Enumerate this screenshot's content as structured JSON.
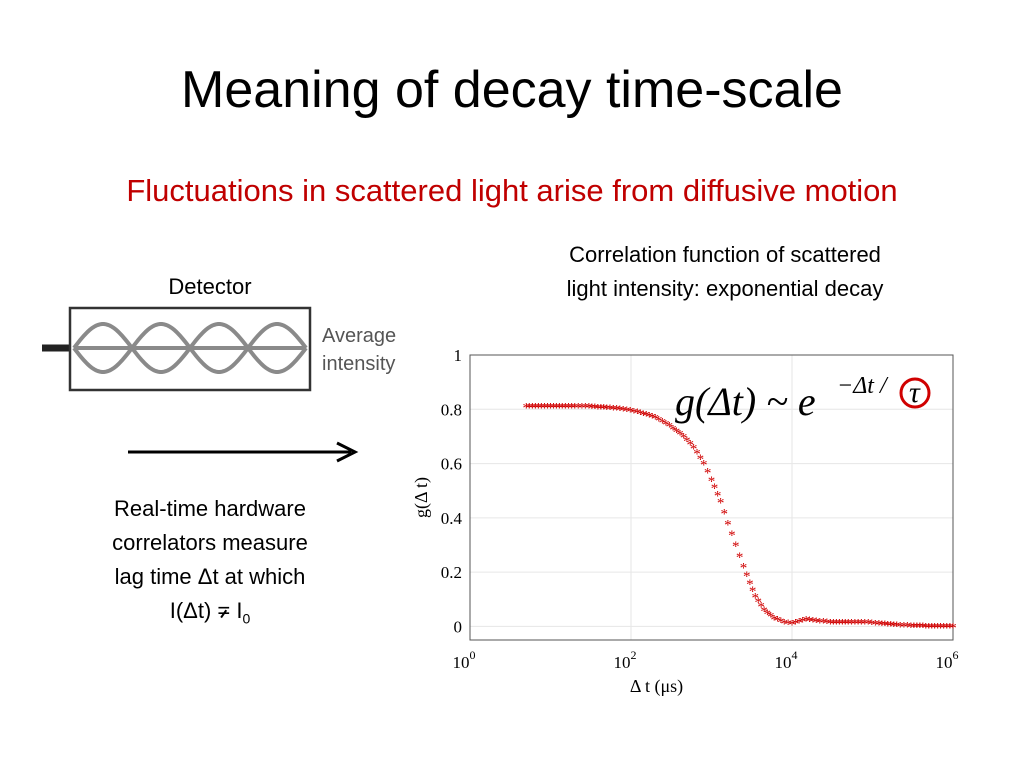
{
  "slide": {
    "title": "Meaning of decay time-scale",
    "subtitle": "Fluctuations in scattered light arise from diffusive motion",
    "detector_label": "Detector",
    "detector_legend": [
      "Average",
      "intensity"
    ],
    "correlation_caption": [
      "Correlation function of scattered",
      "light intensity: exponential decay"
    ],
    "realtime_text": {
      "line1": "Real-time hardware",
      "line2": "correlators measure",
      "line3": "lag time Δt at which",
      "line4_prefix": "I(Δt) ",
      "line4_relation": "=",
      "line4_var": "I",
      "line4_sub": "0"
    },
    "colors": {
      "subtitle": "#c00000",
      "accent": "#d00000",
      "wave": "#8a8a8a"
    }
  },
  "chart_data": {
    "type": "scatter",
    "xscale": "log",
    "xlim": [
      1,
      1000000
    ],
    "ylim": [
      -0.05,
      1
    ],
    "xlabel": "Δ t (μs)",
    "ylabel": "g(Δ t)",
    "x_ticks": [
      {
        "label": "10",
        "exp": "0",
        "value": 1
      },
      {
        "label": "10",
        "exp": "2",
        "value": 100
      },
      {
        "label": "10",
        "exp": "4",
        "value": 10000
      },
      {
        "label": "10",
        "exp": "6",
        "value": 1000000
      }
    ],
    "y_ticks": [
      {
        "label": "0",
        "value": 0
      },
      {
        "label": "0.2",
        "value": 0.2
      },
      {
        "label": "0.4",
        "value": 0.4
      },
      {
        "label": "0.6",
        "value": 0.6
      },
      {
        "label": "0.8",
        "value": 0.8
      },
      {
        "label": "1",
        "value": 1
      }
    ],
    "formula": "g(Δt) ~ e^(-Δt/τ)",
    "marker": "*",
    "series": [
      {
        "color": "#d00000",
        "points": [
          [
            5,
            0.81
          ],
          [
            10,
            0.81
          ],
          [
            14,
            0.81
          ],
          [
            20,
            0.81
          ],
          [
            30,
            0.81
          ],
          [
            50,
            0.805
          ],
          [
            80,
            0.8
          ],
          [
            120,
            0.79
          ],
          [
            200,
            0.77
          ],
          [
            300,
            0.74
          ],
          [
            450,
            0.7
          ],
          [
            600,
            0.66
          ],
          [
            800,
            0.6
          ],
          [
            1000,
            0.54
          ],
          [
            1300,
            0.46
          ],
          [
            1600,
            0.38
          ],
          [
            2000,
            0.3
          ],
          [
            2500,
            0.22
          ],
          [
            3000,
            0.16
          ],
          [
            3500,
            0.11
          ],
          [
            4500,
            0.06
          ],
          [
            6000,
            0.03
          ],
          [
            8000,
            0.015
          ],
          [
            10000,
            0.01
          ],
          [
            15000,
            0.025
          ],
          [
            20000,
            0.02
          ],
          [
            30000,
            0.015
          ],
          [
            50000,
            0.015
          ],
          [
            80000,
            0.015
          ],
          [
            120000,
            0.01
          ],
          [
            200000,
            0.005
          ],
          [
            300000,
            0.002
          ],
          [
            500000,
            0.0
          ],
          [
            700000,
            0.0
          ],
          [
            1000000,
            0.0
          ]
        ]
      }
    ]
  }
}
